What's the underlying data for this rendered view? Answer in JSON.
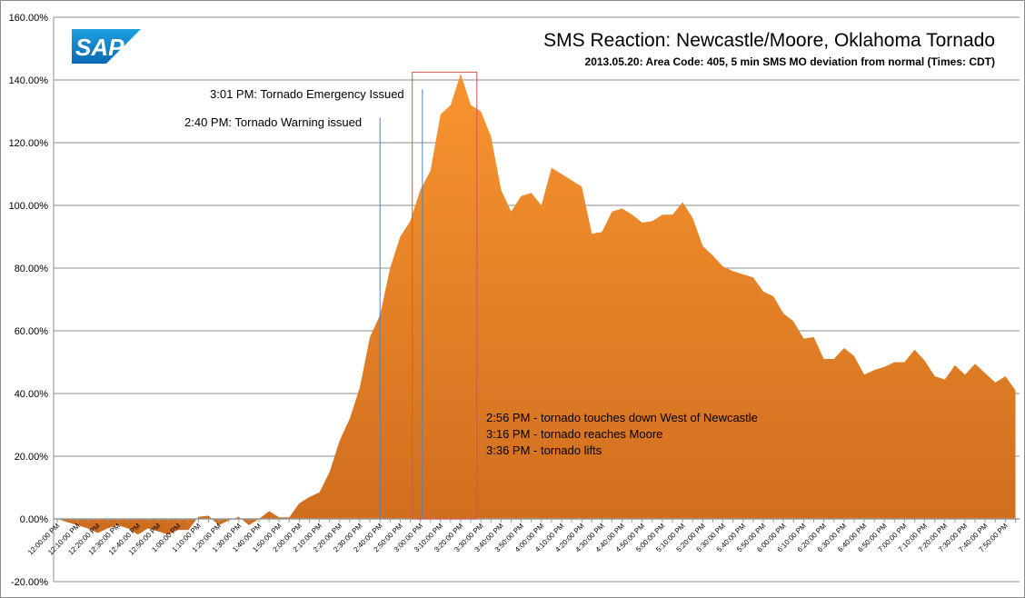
{
  "chart_data": {
    "type": "area",
    "title": "SMS Reaction: Newcastle/Moore, Oklahoma Tornado",
    "subtitle": "2013.05.20:  Area Code: 405, 5 min SMS MO deviation from normal (Times: CDT)",
    "xlabel": "",
    "ylabel": "",
    "ylim": [
      -20,
      160
    ],
    "grid": true,
    "y_ticks": [
      "-20.00%",
      "0.00%",
      "20.00%",
      "40.00%",
      "60.00%",
      "80.00%",
      "100.00%",
      "120.00%",
      "140.00%",
      "160.00%"
    ],
    "x_tick_labels": [
      "12:00:00 PM",
      "12:10:00 PM",
      "12:20:00 PM",
      "12:30:00 PM",
      "12:40:00 PM",
      "12:50:00 PM",
      "1:00:00 PM",
      "1:10:00 PM",
      "1:20:00 PM",
      "1:30:00 PM",
      "1:40:00 PM",
      "1:50:00 PM",
      "2:00:00 PM",
      "2:10:00 PM",
      "2:20:00 PM",
      "2:30:00 PM",
      "2:40:00 PM",
      "2:50:00 PM",
      "3:00:00 PM",
      "3:10:00 PM",
      "3:20:00 PM",
      "3:30:00 PM",
      "3:40:00 PM",
      "3:50:00 PM",
      "4:00:00 PM",
      "4:10:00 PM",
      "4:20:00 PM",
      "4:30:00 PM",
      "4:40:00 PM",
      "4:50:00 PM",
      "5:00:00 PM",
      "5:10:00 PM",
      "5:20:00 PM",
      "5:30:00 PM",
      "5:40:00 PM",
      "5:50:00 PM",
      "6:00:00 PM",
      "6:10:00 PM",
      "6:20:00 PM",
      "6:30:00 PM",
      "6:40:00 PM",
      "6:50:00 PM",
      "7:00:00 PM",
      "7:10:00 PM",
      "7:20:00 PM",
      "7:30:00 PM",
      "7:40:00 PM",
      "7:50:00 PM"
    ],
    "interval_minutes": 5,
    "series": [
      {
        "name": "SMS MO deviation from normal (%)",
        "color_top": "#f8942f",
        "color_bottom": "#cf6d1f",
        "values": [
          0,
          -1,
          -2,
          -3,
          -4.5,
          -3,
          -2,
          -3,
          -5,
          -3,
          -4,
          -5,
          -3.5,
          -3.5,
          0.7,
          1.0,
          -2,
          -0.5,
          0.7,
          -2,
          0,
          2.5,
          0.5,
          0.5,
          5,
          7,
          8.5,
          15,
          25,
          32,
          42,
          58,
          65,
          80,
          90,
          95,
          105,
          111,
          129,
          132,
          142,
          132,
          130,
          122,
          105,
          98,
          103,
          104,
          100,
          112,
          110,
          108,
          106,
          91,
          91.5,
          98,
          99,
          97,
          94.5,
          95,
          97,
          97,
          101,
          96,
          87,
          84,
          80.5,
          79,
          78,
          77,
          72.5,
          71,
          65.5,
          63,
          57.5,
          58,
          51,
          51,
          54.5,
          52,
          46,
          47.5,
          48.5,
          50,
          50,
          54,
          50.5,
          45.5,
          44.5,
          49,
          46,
          49.5,
          46.5,
          43.5,
          45.5,
          41
        ]
      }
    ],
    "markers": [
      {
        "label": "2:40  PM: Tornado Warning issued",
        "index": 32,
        "top_value": 128,
        "color": "#4f81bd"
      },
      {
        "label": "3:01  PM: Tornado Emergency Issued",
        "index": 36.2,
        "top_value": 137,
        "color": "#4f81bd"
      }
    ],
    "highlight_box": {
      "start_index": 35.2,
      "end_index": 41.6,
      "top_value": 142.5,
      "color": "#d9534f"
    },
    "notes": [
      "2:56 PM - tornado touches down West of Newcastle",
      "3:16 PM - tornado reaches Moore",
      "3:36 PM - tornado lifts"
    ],
    "logo": "SAP"
  }
}
